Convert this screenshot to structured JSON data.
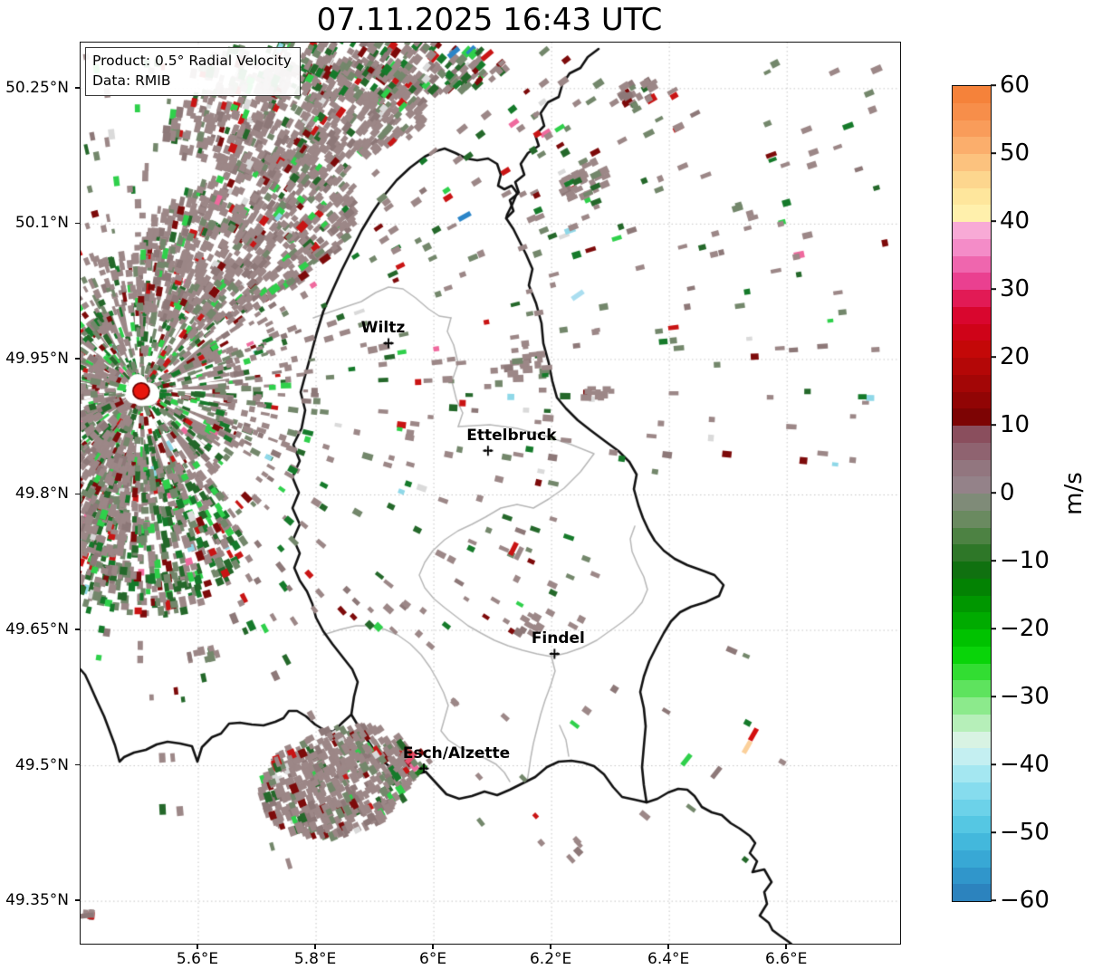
{
  "title": "07.11.2025 16:43 UTC",
  "info_box": {
    "line1": "Product: 0.5° Radial Velocity",
    "line2": "Data: RMIB"
  },
  "axes": {
    "lon_min": 5.4,
    "lon_max": 6.792,
    "lat_min": 49.303,
    "lat_max": 50.301,
    "x_ticks": [
      {
        "value": 5.6,
        "label": "5.6°E"
      },
      {
        "value": 5.8,
        "label": "5.8°E"
      },
      {
        "value": 6.0,
        "label": "6°E"
      },
      {
        "value": 6.2,
        "label": "6.2°E"
      },
      {
        "value": 6.4,
        "label": "6.4°E"
      },
      {
        "value": 6.6,
        "label": "6.6°E"
      }
    ],
    "y_ticks": [
      {
        "value": 50.25,
        "label": "50.25°N"
      },
      {
        "value": 50.1,
        "label": "50.1°N"
      },
      {
        "value": 49.95,
        "label": "49.95°N"
      },
      {
        "value": 49.8,
        "label": "49.8°N"
      },
      {
        "value": 49.65,
        "label": "49.65°N"
      },
      {
        "value": 49.5,
        "label": "49.5°N"
      },
      {
        "value": 49.35,
        "label": "49.35°N"
      }
    ]
  },
  "colorbar": {
    "label": "m/s",
    "min": -60,
    "max": 60,
    "ticks": [
      {
        "value": 60,
        "label": "60"
      },
      {
        "value": 50,
        "label": "50"
      },
      {
        "value": 40,
        "label": "40"
      },
      {
        "value": 30,
        "label": "30"
      },
      {
        "value": 20,
        "label": "20"
      },
      {
        "value": 10,
        "label": "10"
      },
      {
        "value": 0,
        "label": "0"
      },
      {
        "value": -10,
        "label": "−10"
      },
      {
        "value": -20,
        "label": "−20"
      },
      {
        "value": -30,
        "label": "−30"
      },
      {
        "value": -40,
        "label": "−40"
      },
      {
        "value": -50,
        "label": "−50"
      },
      {
        "value": -60,
        "label": "−60"
      }
    ],
    "band_step": 2.5,
    "band_colors_top_to_bottom": [
      "#f5823a",
      "#f78e4a",
      "#f99c5a",
      "#fbae6c",
      "#fcc27e",
      "#fdd68e",
      "#fee69c",
      "#fff0ac",
      "#f8aad6",
      "#f48cc8",
      "#ef66ae",
      "#ea4090",
      "#e21a55",
      "#d9062e",
      "#cf0318",
      "#c40808",
      "#b40707",
      "#a30606",
      "#910505",
      "#7d0404",
      "#8a4e5d",
      "#8f6370",
      "#92767f",
      "#948289",
      "#7f8b78",
      "#6a8a60",
      "#4d8243",
      "#2e7728",
      "#107110",
      "#038203",
      "#009700",
      "#00ab00",
      "#00c200",
      "#09d409",
      "#32dd32",
      "#5ee35e",
      "#8cea8c",
      "#b6efb9",
      "#d8f3e3",
      "#c4eff1",
      "#a4e7f1",
      "#86dcee",
      "#6cd2e9",
      "#55c7e3",
      "#43b8dc",
      "#38a8d5",
      "#3096cb",
      "#2c83be"
    ]
  },
  "cities": [
    {
      "name": "Wiltz",
      "lon": 5.923,
      "lat": 49.968,
      "label_dx": -5
    },
    {
      "name": "Ettelbruck",
      "lon": 6.092,
      "lat": 49.849,
      "label_dx": 27
    },
    {
      "name": "Findel",
      "lon": 6.205,
      "lat": 49.624,
      "label_dx": 5
    },
    {
      "name": "Esch/Alzette",
      "lon": 5.983,
      "lat": 49.497,
      "label_dx": 37
    }
  ],
  "radar_site": {
    "lon": 5.503,
    "lat": 49.915,
    "marker_color": "#e8150d",
    "marker_edge": "#6e0000"
  },
  "colors": {
    "country_border": "#111111",
    "region_border": "#b7b7b7",
    "grid": "#c4c4c4",
    "echo_mauve": "#9c8787",
    "echo_graygreen": "#73876b",
    "echo_darkgreen": "#24682a",
    "echo_brightgreen": "#2fd04b",
    "echo_darkred": "#7d0a0a",
    "echo_red": "#c91414"
  },
  "chart_data": {
    "type": "heatmap",
    "title": "07.11.2025 16:43 UTC",
    "product": "0.5° Radial Velocity",
    "data_source": "RMIB",
    "units": "m/s",
    "value_range": [
      -60,
      60
    ],
    "colorbar_tick_values": [
      60,
      50,
      40,
      30,
      20,
      10,
      0,
      -10,
      -20,
      -30,
      -40,
      -50,
      -60
    ],
    "x_axis": {
      "label_suffix": "°E",
      "range": [
        5.4,
        6.792
      ],
      "ticks": [
        5.6,
        5.8,
        6.0,
        6.2,
        6.4,
        6.6
      ]
    },
    "y_axis": {
      "label_suffix": "°N",
      "range": [
        49.303,
        50.301
      ],
      "ticks": [
        50.25,
        50.1,
        49.95,
        49.8,
        49.65,
        49.5,
        49.35
      ]
    },
    "grid": true,
    "legend_position": "right-colorbar",
    "radar_site": {
      "lon": 5.503,
      "lat": 49.915
    },
    "cities": [
      {
        "name": "Wiltz",
        "lon": 5.923,
        "lat": 49.968
      },
      {
        "name": "Ettelbruck",
        "lon": 6.092,
        "lat": 49.849
      },
      {
        "name": "Findel",
        "lon": 6.205,
        "lat": 49.624
      },
      {
        "name": "Esch/Alzette",
        "lon": 5.983,
        "lat": 49.497
      }
    ],
    "description": "Doppler radial velocity echoes (mostly near 0 m/s, mauve-gray and green bins) concentrated around the radar site west of Luxembourg, with scattered speckles of ±10–30 m/s and isolated extreme values across the domain."
  }
}
